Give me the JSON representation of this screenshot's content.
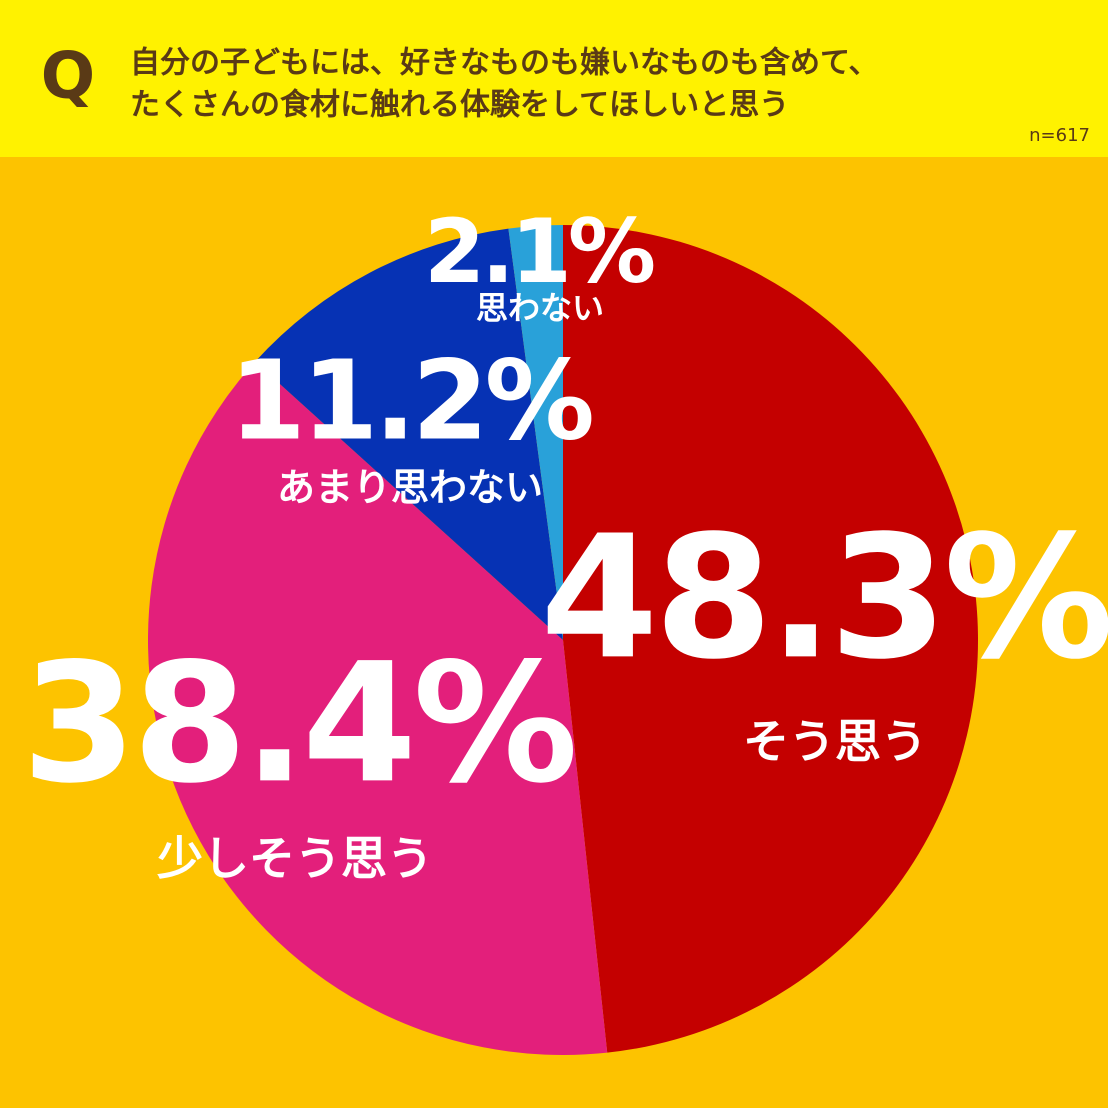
{
  "chart_data": {
    "type": "pie",
    "badge": "Q",
    "title_lines": [
      "自分の子どもには、好きなものも嫌いなものも含めて、",
      "たくさんの食材に触れる体験をしてほしいと思う"
    ],
    "note": "n=617",
    "categories": [
      "そう思う",
      "少しそう思う",
      "あまり思わない",
      "思わない"
    ],
    "values": [
      48.3,
      38.4,
      11.2,
      2.1
    ],
    "value_labels": [
      "48.3%",
      "38.4%",
      "11.2%",
      "2.1%"
    ],
    "colors": [
      "#c40000",
      "#e31f7b",
      "#0632b4",
      "#29a1d9"
    ]
  }
}
